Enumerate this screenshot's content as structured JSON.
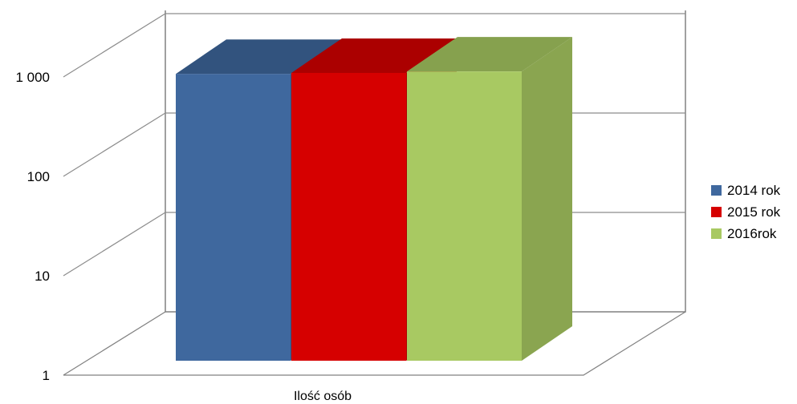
{
  "chart_data": {
    "type": "bar",
    "style": "3d-clustered-column",
    "categories": [
      "Ilość osób"
    ],
    "series": [
      {
        "name": "2014 rok",
        "values": [
          850
        ],
        "color": "#3F689E"
      },
      {
        "name": "2015 rok",
        "values": [
          870
        ],
        "color": "#D60000"
      },
      {
        "name": "2016rok",
        "values": [
          900
        ],
        "color": "#A8C962"
      }
    ],
    "yscale": "log",
    "ylim": [
      1,
      1000
    ],
    "yticks": [
      {
        "value": 1,
        "label": "1"
      },
      {
        "value": 10,
        "label": "10"
      },
      {
        "value": 100,
        "label": "100"
      },
      {
        "value": 1000,
        "label": "1 000"
      }
    ],
    "grid": true,
    "legend": "right"
  }
}
